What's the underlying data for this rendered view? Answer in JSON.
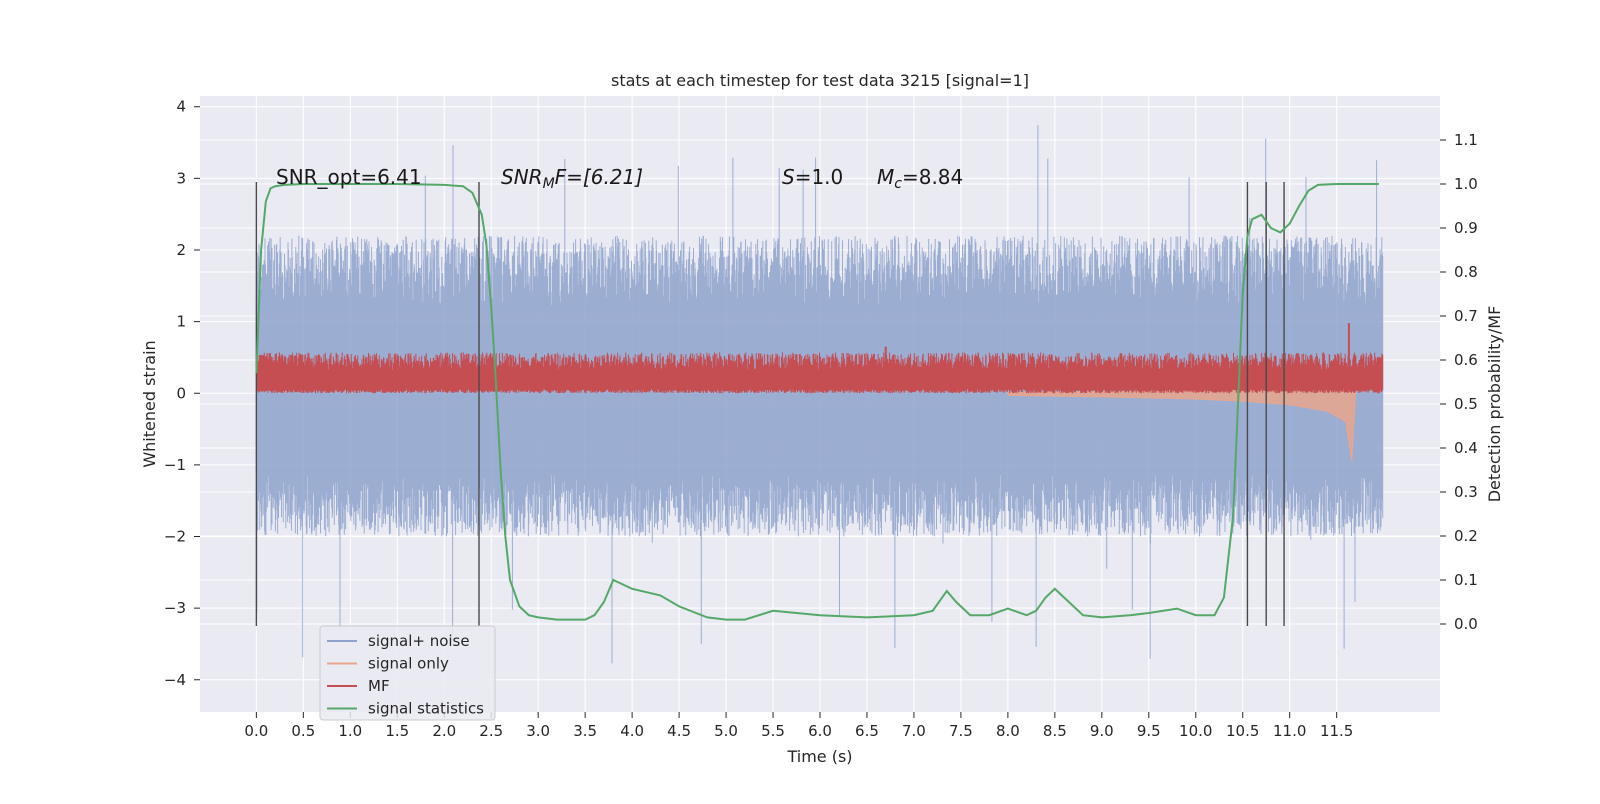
{
  "chart_data": {
    "type": "line",
    "title": "stats at each timestep for test data 3215 [signal=1]",
    "xlabel": "Time (s)",
    "ylabel_left": "Whitened strain",
    "ylabel_right": "Detection probability/MF",
    "xlim": [
      -0.6,
      12.6
    ],
    "ylim_left": [
      -4.45,
      4.15
    ],
    "ylim_right": [
      -0.2,
      1.2
    ],
    "x_ticks": [
      "0.0",
      "0.5",
      "1.0",
      "1.5",
      "2.0",
      "2.5",
      "3.0",
      "3.5",
      "4.0",
      "4.5",
      "5.0",
      "5.5",
      "6.0",
      "6.5",
      "7.0",
      "7.5",
      "8.0",
      "8.5",
      "9.0",
      "9.5",
      "10.0",
      "10.5",
      "11.0",
      "11.5"
    ],
    "y_ticks_left": [
      "4",
      "3",
      "2",
      "1",
      "0",
      "−1",
      "−2",
      "−3",
      "−4"
    ],
    "y_ticks_right": [
      "1.1",
      "1.0",
      "0.9",
      "0.8",
      "0.7",
      "0.6",
      "0.5",
      "0.4",
      "0.3",
      "0.2",
      "0.1",
      "0.0"
    ],
    "grid": true,
    "legend_position": "lower-left",
    "annotations": {
      "snr_opt": "SNR_opt=6.41",
      "snr_mf_base": "SNR",
      "snr_mf_sub": "M",
      "snr_mf_rest": "F=[6.21]",
      "s_sym": "S",
      "s_val": "=1.0",
      "mc_sym": "M",
      "mc_sub": "c",
      "mc_val": "=8.84"
    },
    "vertical_lines_s": [
      0.0,
      2.37,
      10.55,
      10.75,
      10.94
    ],
    "series": [
      {
        "name": "signal+ noise",
        "axis": "left",
        "color": "#8ea2cc",
        "x_range": [
          0.0,
          11.99
        ],
        "typical_envelope": [
          -2.0,
          2.2
        ],
        "extremes": [
          -4.0,
          3.8
        ]
      },
      {
        "name": "signal only",
        "axis": "left",
        "color": "#e8a68d",
        "x": [
          0.0,
          8.0,
          9.0,
          10.0,
          10.5,
          11.0,
          11.4,
          11.6,
          11.66,
          11.7
        ],
        "amplitude": [
          0.01,
          0.03,
          0.05,
          0.08,
          0.11,
          0.16,
          0.25,
          0.4,
          0.95,
          0.0
        ]
      },
      {
        "name": "MF",
        "axis": "left",
        "color": "#c44e52",
        "x_range": [
          0.0,
          11.99
        ],
        "baseline": 0.2,
        "range": [
          0.0,
          0.55
        ],
        "peaks": [
          {
            "x": 6.7,
            "y": 0.65
          },
          {
            "x": 11.63,
            "y": 0.98
          }
        ]
      },
      {
        "name": "signal statistics",
        "axis": "right",
        "color": "#55a868",
        "x": [
          0.0,
          0.05,
          0.1,
          0.15,
          0.2,
          0.3,
          0.5,
          1.0,
          1.5,
          2.0,
          2.2,
          2.3,
          2.4,
          2.45,
          2.5,
          2.55,
          2.6,
          2.65,
          2.7,
          2.8,
          2.9,
          3.0,
          3.2,
          3.5,
          3.6,
          3.7,
          3.8,
          3.9,
          4.0,
          4.3,
          4.5,
          4.8,
          5.0,
          5.2,
          5.5,
          6.0,
          6.5,
          7.0,
          7.2,
          7.3,
          7.35,
          7.45,
          7.6,
          7.8,
          8.0,
          8.2,
          8.3,
          8.4,
          8.5,
          8.6,
          8.8,
          9.0,
          9.3,
          9.5,
          9.8,
          10.0,
          10.2,
          10.3,
          10.4,
          10.45,
          10.5,
          10.55,
          10.6,
          10.7,
          10.8,
          10.9,
          11.0,
          11.1,
          11.2,
          11.3,
          11.5,
          11.8,
          11.95
        ],
        "values": [
          0.57,
          0.85,
          0.96,
          0.99,
          0.995,
          0.998,
          1.0,
          1.0,
          1.0,
          0.998,
          0.995,
          0.98,
          0.93,
          0.86,
          0.72,
          0.55,
          0.35,
          0.2,
          0.1,
          0.04,
          0.02,
          0.015,
          0.01,
          0.01,
          0.02,
          0.05,
          0.1,
          0.09,
          0.08,
          0.065,
          0.04,
          0.015,
          0.01,
          0.01,
          0.03,
          0.02,
          0.015,
          0.02,
          0.03,
          0.06,
          0.075,
          0.05,
          0.02,
          0.02,
          0.035,
          0.02,
          0.03,
          0.06,
          0.08,
          0.06,
          0.02,
          0.015,
          0.02,
          0.025,
          0.035,
          0.02,
          0.02,
          0.06,
          0.25,
          0.5,
          0.75,
          0.88,
          0.92,
          0.93,
          0.9,
          0.89,
          0.91,
          0.95,
          0.985,
          0.998,
          1.0,
          1.0,
          1.0
        ]
      }
    ]
  }
}
